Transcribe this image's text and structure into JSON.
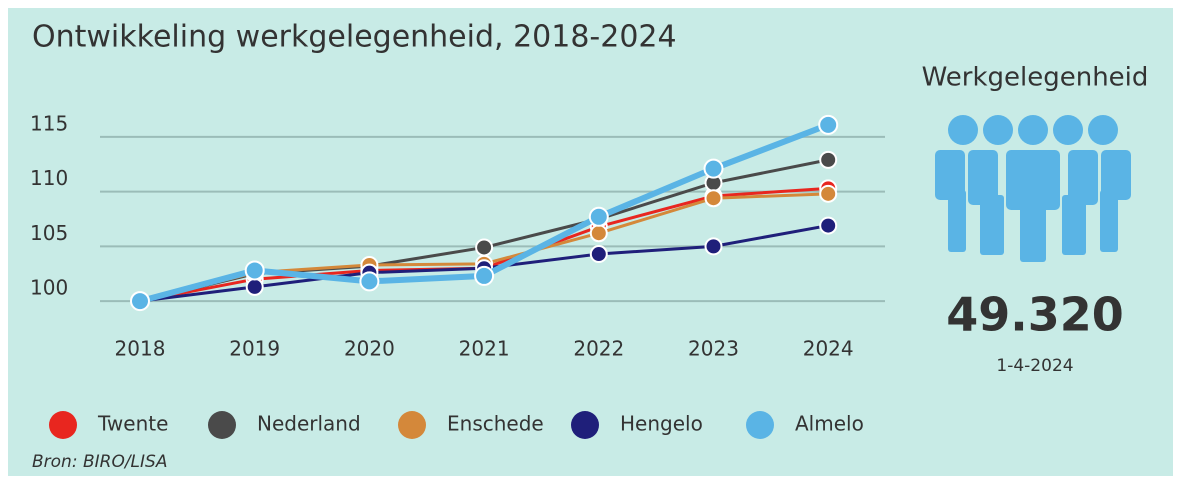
{
  "chart_data": {
    "type": "line",
    "title": "Ontwikkeling werkgelegenheid, 2018-2024",
    "categories": [
      "2018",
      "2019",
      "2020",
      "2021",
      "2022",
      "2023",
      "2024"
    ],
    "series": [
      {
        "name": "Twente",
        "color": "#e8261f",
        "values": [
          100,
          102.0,
          102.8,
          103.0,
          106.8,
          109.6,
          110.3
        ]
      },
      {
        "name": "Nederland",
        "color": "#4a4a4a",
        "values": [
          100,
          102.5,
          103.2,
          104.9,
          107.5,
          110.8,
          112.9
        ]
      },
      {
        "name": "Enschede",
        "color": "#d4883a",
        "values": [
          100,
          102.6,
          103.3,
          103.4,
          106.2,
          109.4,
          109.8
        ]
      },
      {
        "name": "Hengelo",
        "color": "#1f1f7a",
        "values": [
          100,
          101.3,
          102.6,
          103.0,
          104.3,
          105.0,
          106.9
        ]
      },
      {
        "name": "Almelo",
        "color": "#5ab4e5",
        "values": [
          100,
          102.8,
          101.8,
          102.3,
          107.7,
          112.1,
          116.1
        ]
      }
    ],
    "ylim": [
      98,
      117
    ],
    "yticks": [
      100,
      105,
      110,
      115
    ],
    "grid": true,
    "source": "Bron: BIRO/LISA"
  },
  "panel": {
    "title": "Werkgelegenheid",
    "value": "49.320",
    "date": "1-4-2024"
  }
}
